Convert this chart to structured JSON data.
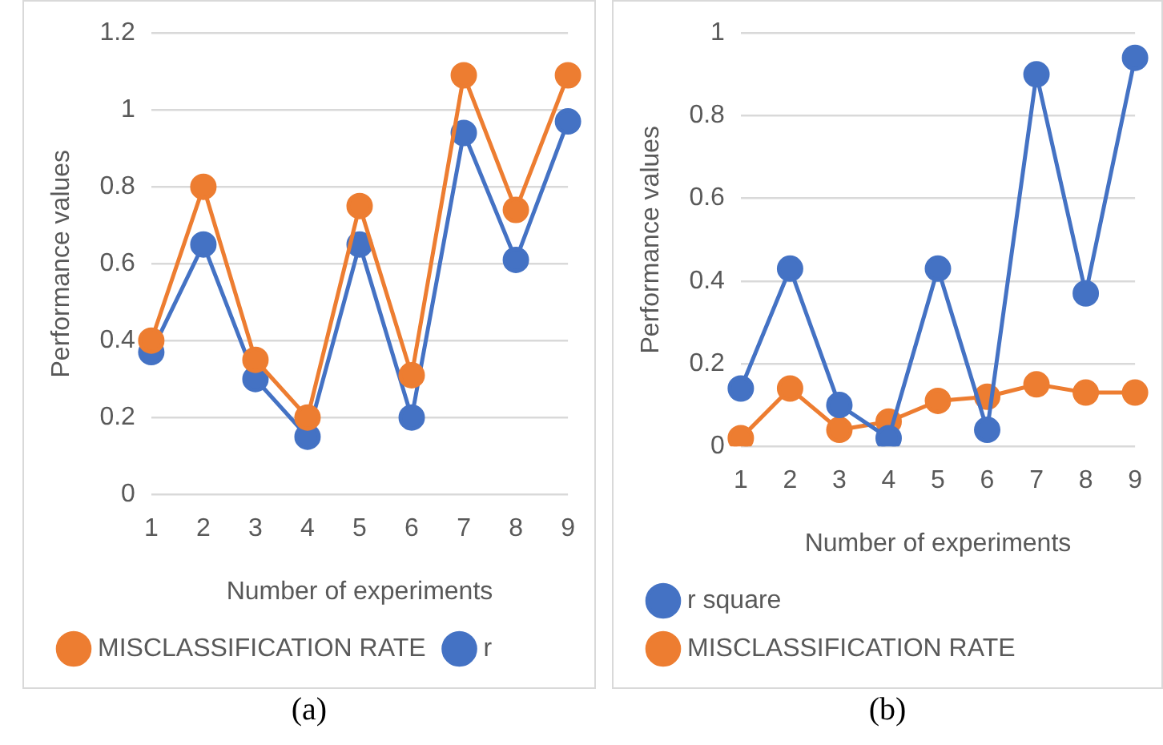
{
  "chart_data": [
    {
      "type": "line",
      "xlabel": "Number of experiments",
      "ylabel": "Performance values",
      "categories": [
        "1",
        "2",
        "3",
        "4",
        "5",
        "6",
        "7",
        "8",
        "9"
      ],
      "series": [
        {
          "name": "MISCLASSIFICATION RATE",
          "color": "#ed7d31",
          "values": [
            0.4,
            0.8,
            0.35,
            0.2,
            0.75,
            0.31,
            1.09,
            0.74,
            1.09
          ]
        },
        {
          "name": "r",
          "color": "#4472c4",
          "values": [
            0.37,
            0.65,
            0.3,
            0.15,
            0.65,
            0.2,
            0.94,
            0.61,
            0.97
          ]
        }
      ],
      "ylim": [
        0,
        1.2
      ],
      "yticks": [
        0,
        0.2,
        0.4,
        0.6,
        0.8,
        1,
        1.2
      ],
      "grid": "y",
      "legend": "bottom",
      "marker": "circle",
      "line_style": "solid",
      "annotations": [
        "(a)"
      ]
    },
    {
      "type": "line",
      "xlabel": "Number of experiments",
      "ylabel": "Performance values",
      "categories": [
        "1",
        "2",
        "3",
        "4",
        "5",
        "6",
        "7",
        "8",
        "9"
      ],
      "series": [
        {
          "name": "r square",
          "color": "#4472c4",
          "values": [
            0.14,
            0.43,
            0.1,
            0.02,
            0.43,
            0.04,
            0.9,
            0.37,
            0.94
          ]
        },
        {
          "name": "MISCLASSIFICATION RATE",
          "color": "#ed7d31",
          "values": [
            0.02,
            0.14,
            0.04,
            0.06,
            0.11,
            0.12,
            0.15,
            0.13,
            0.13
          ]
        }
      ],
      "ylim": [
        0,
        1
      ],
      "yticks": [
        0,
        0.2,
        0.4,
        0.6,
        0.8,
        1
      ],
      "grid": "y",
      "legend": "bottom",
      "marker": "circle",
      "line_style": "solid",
      "annotations": [
        "(b)"
      ]
    }
  ]
}
